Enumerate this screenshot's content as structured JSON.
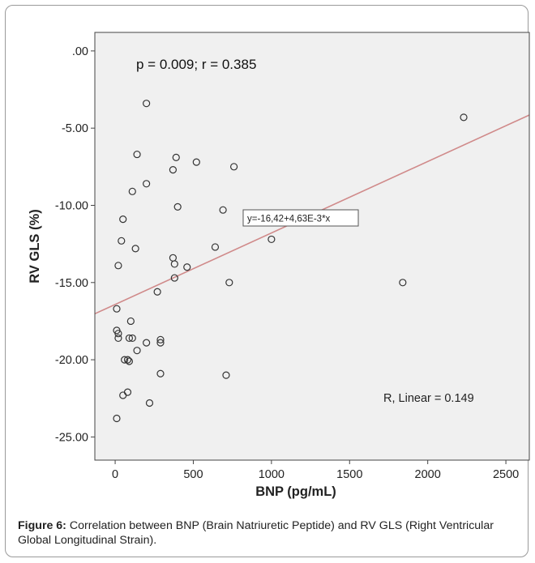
{
  "chart_data": {
    "type": "scatter",
    "xlabel": "BNP (pg/mL)",
    "ylabel": "RV GLS (%)",
    "xlim": [
      -130,
      2650
    ],
    "ylim": [
      -26.5,
      1.2
    ],
    "x_ticks": [
      0,
      500,
      1000,
      1500,
      2000,
      2500
    ],
    "y_ticks": [
      0,
      -5,
      -10,
      -15,
      -20,
      -25
    ],
    "y_tick_labels": [
      ".00",
      "-5.00",
      "-10.00",
      "-15.00",
      "-20.00",
      "-25.00"
    ],
    "annotations": {
      "stats": "p = 0.009; r = 0.385",
      "equation": "y=-16,42+4,63E-3*x",
      "r_linear": "R, Linear = 0.149"
    },
    "fit_line": {
      "intercept": -16.42,
      "slope": 0.00463,
      "color": "#d08a8a"
    },
    "marker_color": "#333333",
    "grid": false,
    "points": [
      {
        "x": 200,
        "y": -3.4
      },
      {
        "x": 2230,
        "y": -4.3
      },
      {
        "x": 140,
        "y": -6.7
      },
      {
        "x": 390,
        "y": -6.9
      },
      {
        "x": 370,
        "y": -7.7
      },
      {
        "x": 520,
        "y": -7.2
      },
      {
        "x": 760,
        "y": -7.5
      },
      {
        "x": 200,
        "y": -8.6
      },
      {
        "x": 110,
        "y": -9.1
      },
      {
        "x": 400,
        "y": -10.1
      },
      {
        "x": 690,
        "y": -10.3
      },
      {
        "x": 50,
        "y": -10.9
      },
      {
        "x": 1000,
        "y": -12.2
      },
      {
        "x": 40,
        "y": -12.3
      },
      {
        "x": 130,
        "y": -12.8
      },
      {
        "x": 640,
        "y": -12.7
      },
      {
        "x": 370,
        "y": -13.4
      },
      {
        "x": 380,
        "y": -13.8
      },
      {
        "x": 20,
        "y": -13.9
      },
      {
        "x": 460,
        "y": -14.0
      },
      {
        "x": 380,
        "y": -14.7
      },
      {
        "x": 730,
        "y": -15.0
      },
      {
        "x": 1840,
        "y": -15.0
      },
      {
        "x": 270,
        "y": -15.6
      },
      {
        "x": 10,
        "y": -16.7
      },
      {
        "x": 100,
        "y": -17.5
      },
      {
        "x": 10,
        "y": -18.1
      },
      {
        "x": 20,
        "y": -18.3
      },
      {
        "x": 20,
        "y": -18.6
      },
      {
        "x": 90,
        "y": -18.6
      },
      {
        "x": 110,
        "y": -18.6
      },
      {
        "x": 290,
        "y": -18.7
      },
      {
        "x": 290,
        "y": -18.9
      },
      {
        "x": 200,
        "y": -18.9
      },
      {
        "x": 140,
        "y": -19.4
      },
      {
        "x": 60,
        "y": -20.0
      },
      {
        "x": 80,
        "y": -20.0
      },
      {
        "x": 90,
        "y": -20.1
      },
      {
        "x": 290,
        "y": -20.9
      },
      {
        "x": 710,
        "y": -21.0
      },
      {
        "x": 80,
        "y": -22.1
      },
      {
        "x": 50,
        "y": -22.3
      },
      {
        "x": 220,
        "y": -22.8
      },
      {
        "x": 10,
        "y": -23.8
      }
    ]
  },
  "caption": {
    "figure_label": "Figure 6:",
    "text": " Correlation between BNP (Brain Natriuretic Peptide) and RV GLS (Right Ventricular Global Longitudinal Strain)."
  }
}
